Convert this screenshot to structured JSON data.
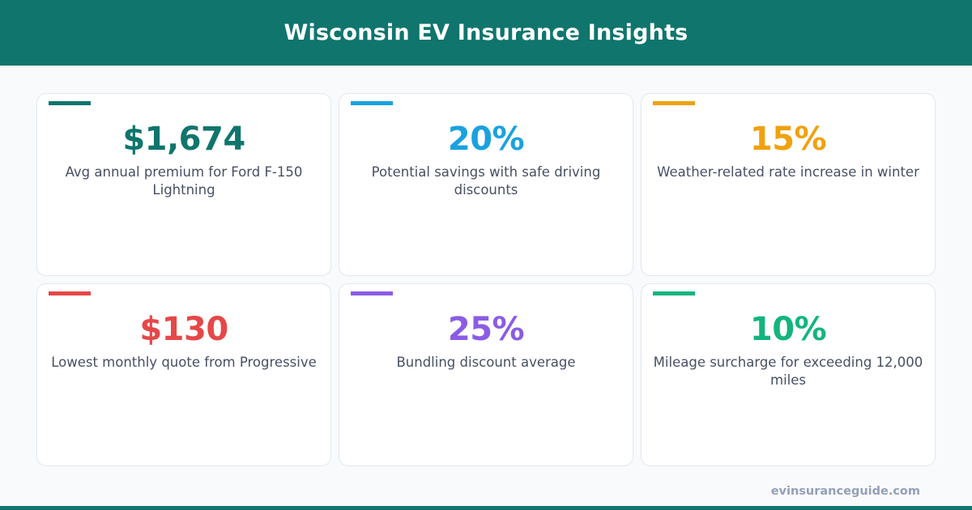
{
  "header": {
    "title": "Wisconsin EV Insurance Insights"
  },
  "cards": [
    {
      "value": "$1,674",
      "label": "Avg annual premium for Ford F-150 Lightning",
      "color": "#10756d"
    },
    {
      "value": "20%",
      "label": "Potential savings with safe driving discounts",
      "color": "#1ba1de"
    },
    {
      "value": "15%",
      "label": "Weather-related rate increase in winter",
      "color": "#f0a10f"
    },
    {
      "value": "$130",
      "label": "Lowest monthly quote from Progressive",
      "color": "#e54848"
    },
    {
      "value": "25%",
      "label": "Bundling discount average",
      "color": "#8b5ce6"
    },
    {
      "value": "10%",
      "label": "Mileage surcharge for exceeding 12,000 miles",
      "color": "#14b47f"
    }
  ],
  "footer": {
    "site": "evinsuranceguide.com"
  }
}
